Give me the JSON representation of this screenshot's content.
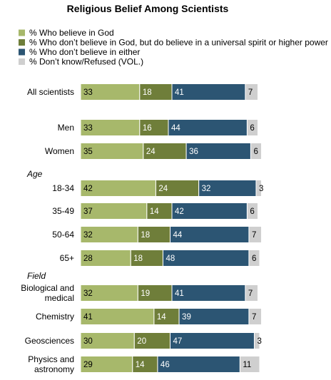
{
  "chart_data": {
    "type": "bar",
    "orientation": "horizontal",
    "stacked": true,
    "title": "Religious Belief Among Scientists",
    "legend": [
      {
        "label": "% Who believe in God",
        "color": "#a7b86b"
      },
      {
        "label": "% Who don’t believe in God, but do believe in a universal spirit or higher power",
        "color": "#6f7e3a"
      },
      {
        "label": "% Who don’t believe in either",
        "color": "#2c5573"
      },
      {
        "label": "% Don’t know/Refused (VOL.)",
        "color": "#cfcfcf"
      }
    ],
    "groups": [
      {
        "heading": "",
        "rows": [
          {
            "label": "All scientists",
            "values": [
              33,
              18,
              41,
              7
            ]
          }
        ]
      },
      {
        "heading": "",
        "rows": [
          {
            "label": "Men",
            "values": [
              33,
              16,
              44,
              6
            ]
          },
          {
            "label": "Women",
            "values": [
              35,
              24,
              36,
              6
            ]
          }
        ]
      },
      {
        "heading": "Age",
        "rows": [
          {
            "label": "18-34",
            "values": [
              42,
              24,
              32,
              3
            ]
          },
          {
            "label": "35-49",
            "values": [
              37,
              14,
              42,
              6
            ]
          },
          {
            "label": "50-64",
            "values": [
              32,
              18,
              44,
              7
            ]
          },
          {
            "label": "65+",
            "values": [
              28,
              18,
              48,
              6
            ]
          }
        ]
      },
      {
        "heading": "Field",
        "rows": [
          {
            "label": "Biological and\nmedical",
            "values": [
              32,
              19,
              41,
              7
            ]
          },
          {
            "label": "Chemistry",
            "values": [
              41,
              14,
              39,
              7
            ]
          },
          {
            "label": "Geosciences",
            "values": [
              30,
              20,
              47,
              3
            ]
          },
          {
            "label": "Physics and\nastronomy",
            "values": [
              29,
              14,
              46,
              11
            ]
          }
        ]
      }
    ]
  }
}
